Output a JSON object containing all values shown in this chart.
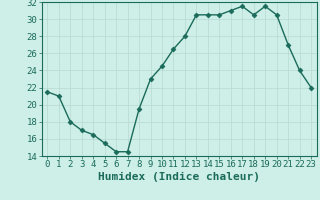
{
  "x": [
    0,
    1,
    2,
    3,
    4,
    5,
    6,
    7,
    8,
    9,
    10,
    11,
    12,
    13,
    14,
    15,
    16,
    17,
    18,
    19,
    20,
    21,
    22,
    23
  ],
  "y": [
    21.5,
    21.0,
    18.0,
    17.0,
    16.5,
    15.5,
    14.5,
    14.5,
    19.5,
    23.0,
    24.5,
    26.5,
    28.0,
    30.5,
    30.5,
    30.5,
    31.0,
    31.5,
    30.5,
    31.5,
    30.5,
    27.0,
    24.0,
    22.0
  ],
  "ylim": [
    14,
    32
  ],
  "yticks": [
    14,
    16,
    18,
    20,
    22,
    24,
    26,
    28,
    30,
    32
  ],
  "xlabel": "Humidex (Indice chaleur)",
  "line_color": "#1a6b5a",
  "marker": "D",
  "marker_size": 2.5,
  "bg_color": "#ceeee8",
  "grid_color": "#b8d8d2",
  "tick_label_fontsize": 6.5,
  "xlabel_fontsize": 8
}
